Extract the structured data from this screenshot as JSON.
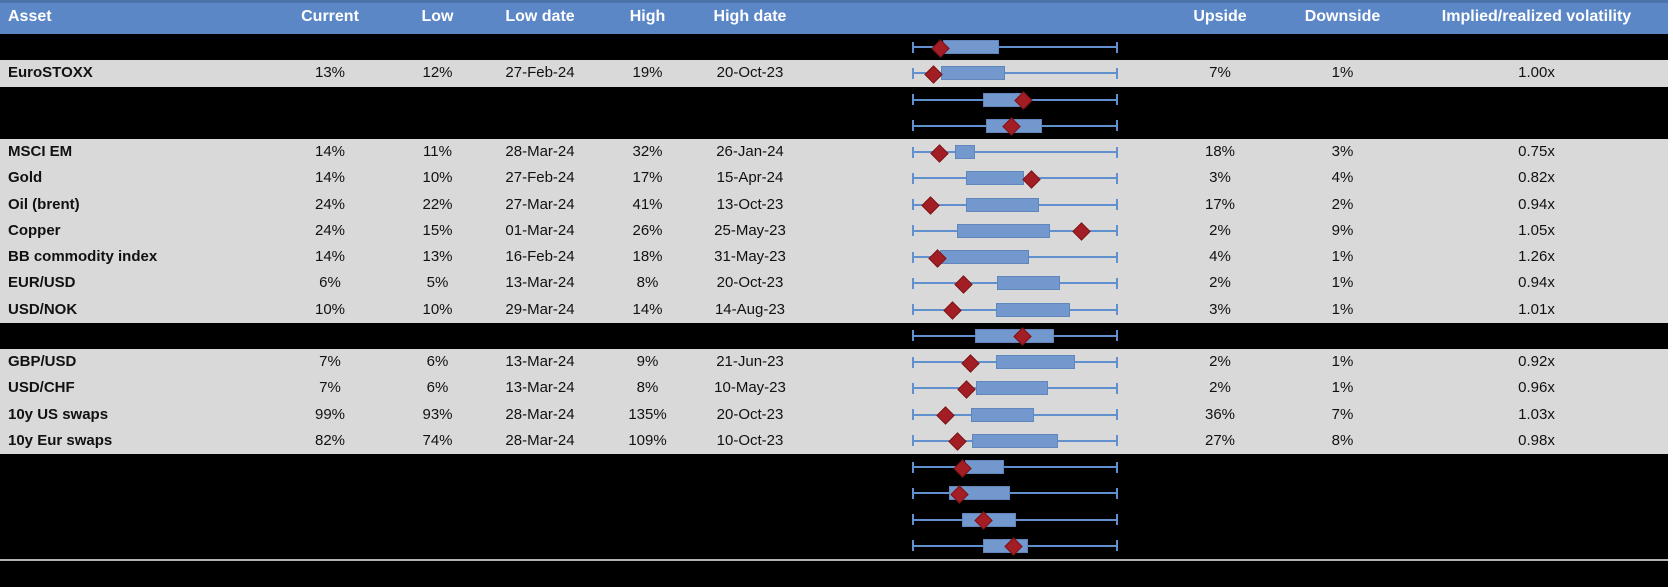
{
  "header": {
    "columns": [
      "Asset",
      "Current",
      "Low",
      "Low date",
      "High",
      "High date",
      "",
      "Upside",
      "Downside",
      "Implied/realized volatility"
    ]
  },
  "colors": {
    "header_bg": "#5b87c6",
    "header_top_border": "#4b74ab",
    "row_alt": "#d9d9d9",
    "redacted_row": "#000000",
    "box_fill": "#7398cd",
    "box_border": "#6186bb",
    "whisker": "#6090ce",
    "marker": "#a21e24",
    "divider": "#b3b3b3"
  },
  "chart_data": {
    "type": "table",
    "subtype": "box-whisker strip per row; whiskers span the full 12m low-high range (normalized 0-1), box = interquartile band, red diamond = current level",
    "columns": [
      "Asset",
      "Current",
      "Low",
      "Low date",
      "High",
      "High date",
      "",
      "Upside",
      "Downside",
      "Implied/realized volatility"
    ],
    "rows": [
      {
        "redacted": true,
        "box": [
          0.147,
          0.412
        ],
        "marker": 0.132
      },
      {
        "asset": "EuroSTOXX",
        "current": "13%",
        "low": "12%",
        "low_date": "27-Feb-24",
        "high": "19%",
        "high_date": "20-Oct-23",
        "upside": "7%",
        "downside": "1%",
        "implied_realized": "1.00x",
        "box": [
          0.137,
          0.443
        ],
        "marker": 0.097
      },
      {
        "redacted": true,
        "box": [
          0.345,
          0.533
        ],
        "marker": 0.538
      },
      {
        "redacted": true,
        "box": [
          0.356,
          0.623
        ],
        "marker": 0.479
      },
      {
        "asset": "MSCI EM",
        "current": "14%",
        "low": "11%",
        "low_date": "28-Mar-24",
        "high": "32%",
        "high_date": "26-Jan-24",
        "upside": "18%",
        "downside": "3%",
        "implied_realized": "0.75x",
        "box": [
          0.206,
          0.296
        ],
        "marker": 0.124
      },
      {
        "asset": "Gold",
        "current": "14%",
        "low": "10%",
        "low_date": "27-Feb-24",
        "high": "17%",
        "high_date": "15-Apr-24",
        "upside": "3%",
        "downside": "4%",
        "implied_realized": "0.82x",
        "box": [
          0.26,
          0.533
        ],
        "marker": 0.574
      },
      {
        "asset": "Oil (brent)",
        "current": "24%",
        "low": "22%",
        "low_date": "27-Mar-24",
        "high": "41%",
        "high_date": "13-Oct-23",
        "upside": "17%",
        "downside": "2%",
        "implied_realized": "0.94x",
        "box": [
          0.26,
          0.606
        ],
        "marker": 0.08
      },
      {
        "asset": "Copper",
        "current": "24%",
        "low": "15%",
        "low_date": "01-Mar-24",
        "high": "26%",
        "high_date": "25-May-23",
        "upside": "2%",
        "downside": "9%",
        "implied_realized": "1.05x",
        "box": [
          0.214,
          0.663
        ],
        "marker": 0.823
      },
      {
        "asset": "BB commodity index",
        "current": "14%",
        "low": "13%",
        "low_date": "16-Feb-24",
        "high": "18%",
        "high_date": "31-May-23",
        "upside": "4%",
        "downside": "1%",
        "implied_realized": "1.26x",
        "box": [
          0.132,
          0.557
        ],
        "marker": 0.116
      },
      {
        "asset": "EUR/USD",
        "current": "6%",
        "low": "5%",
        "low_date": "13-Mar-24",
        "high": "8%",
        "high_date": "20-Oct-23",
        "upside": "2%",
        "downside": "1%",
        "implied_realized": "0.94x",
        "box": [
          0.413,
          0.712
        ],
        "marker": 0.244
      },
      {
        "asset": "USD/NOK",
        "current": "10%",
        "low": "10%",
        "low_date": "29-Mar-24",
        "high": "14%",
        "high_date": "14-Aug-23",
        "upside": "3%",
        "downside": "1%",
        "implied_realized": "1.01x",
        "box": [
          0.406,
          0.761
        ],
        "marker": 0.19
      },
      {
        "redacted": true,
        "box": [
          0.304,
          0.68
        ],
        "marker": 0.533
      },
      {
        "asset": "GBP/USD",
        "current": "7%",
        "low": "6%",
        "low_date": "13-Mar-24",
        "high": "9%",
        "high_date": "21-Jun-23",
        "upside": "2%",
        "downside": "1%",
        "implied_realized": "0.92x",
        "box": [
          0.406,
          0.786
        ],
        "marker": 0.277
      },
      {
        "asset": "USD/CHF",
        "current": "7%",
        "low": "6%",
        "low_date": "13-Mar-24",
        "high": "8%",
        "high_date": "10-May-23",
        "upside": "2%",
        "downside": "1%",
        "implied_realized": "0.96x",
        "box": [
          0.309,
          0.652
        ],
        "marker": 0.257
      },
      {
        "asset": "10y US swaps",
        "current": "99%",
        "low": "93%",
        "low_date": "28-Mar-24",
        "high": "135%",
        "high_date": "20-Oct-23",
        "upside": "36%",
        "downside": "7%",
        "implied_realized": "1.03x",
        "box": [
          0.284,
          0.584
        ],
        "marker": 0.153
      },
      {
        "asset": "10y Eur swaps",
        "current": "82%",
        "low": "74%",
        "low_date": "28-Mar-24",
        "high": "109%",
        "high_date": "10-Oct-23",
        "upside": "27%",
        "downside": "8%",
        "implied_realized": "0.98x",
        "box": [
          0.29,
          0.7
        ],
        "marker": 0.214
      },
      {
        "redacted": true,
        "box": [
          0.257,
          0.434
        ],
        "marker": 0.236
      },
      {
        "redacted": true,
        "box": [
          0.175,
          0.464
        ],
        "marker": 0.223
      },
      {
        "redacted": true,
        "box": [
          0.241,
          0.495
        ],
        "marker": 0.343
      },
      {
        "redacted": true,
        "box": [
          0.343,
          0.553
        ],
        "marker": 0.489
      }
    ]
  }
}
